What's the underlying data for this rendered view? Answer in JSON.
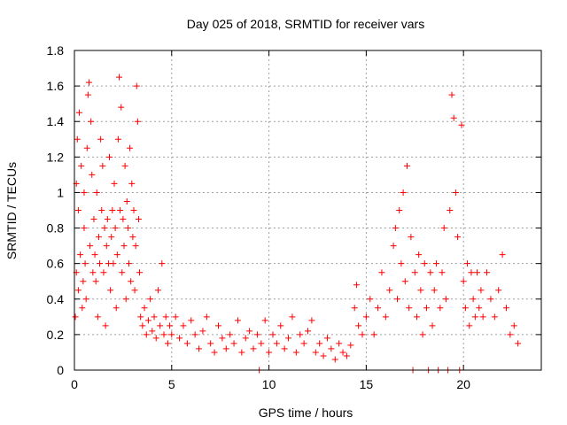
{
  "chart_data": {
    "type": "scatter",
    "title": "Day 025 of 2018, SRMTID for receiver vars",
    "xlabel": "GPS time / hours",
    "ylabel": "SRMTID / TECUs",
    "xlim": [
      0,
      24
    ],
    "ylim": [
      0,
      1.8
    ],
    "x_ticks": [
      0,
      5,
      10,
      15,
      20
    ],
    "x_tick_labels": [
      "0",
      "5",
      "10",
      "15",
      "20"
    ],
    "y_ticks": [
      0,
      0.2,
      0.4,
      0.6,
      0.8,
      1.0,
      1.2,
      1.4,
      1.6,
      1.8
    ],
    "y_tick_labels": [
      "0",
      "0.2",
      "0.4",
      "0.6",
      "0.8",
      "1",
      "1.2",
      "1.4",
      "1.6",
      "1.8"
    ],
    "grid": true,
    "marker": "+",
    "series": [
      {
        "name": "SRMTID",
        "color": "#ff0000",
        "points": [
          [
            0.05,
            0.3
          ],
          [
            0.1,
            0.55
          ],
          [
            0.1,
            1.05
          ],
          [
            0.15,
            1.3
          ],
          [
            0.2,
            0.9
          ],
          [
            0.2,
            0.45
          ],
          [
            0.25,
            1.45
          ],
          [
            0.3,
            0.65
          ],
          [
            0.35,
            1.15
          ],
          [
            0.4,
            0.35
          ],
          [
            0.45,
            0.5
          ],
          [
            0.5,
            1.0
          ],
          [
            0.5,
            0.8
          ],
          [
            0.55,
            0.6
          ],
          [
            0.6,
            0.4
          ],
          [
            0.65,
            1.25
          ],
          [
            0.7,
            1.55
          ],
          [
            0.75,
            1.62
          ],
          [
            0.8,
            0.7
          ],
          [
            0.85,
            1.4
          ],
          [
            0.9,
            1.1
          ],
          [
            0.95,
            0.55
          ],
          [
            1.0,
            0.85
          ],
          [
            1.05,
            0.65
          ],
          [
            1.1,
            0.5
          ],
          [
            1.15,
            1.0
          ],
          [
            1.2,
            0.3
          ],
          [
            1.25,
            0.75
          ],
          [
            1.3,
            0.6
          ],
          [
            1.35,
            1.3
          ],
          [
            1.4,
            0.9
          ],
          [
            1.45,
            1.15
          ],
          [
            1.5,
            0.55
          ],
          [
            1.55,
            0.8
          ],
          [
            1.6,
            0.25
          ],
          [
            1.65,
            0.7
          ],
          [
            1.7,
            0.85
          ],
          [
            1.75,
            0.6
          ],
          [
            1.8,
            1.2
          ],
          [
            1.85,
            0.45
          ],
          [
            1.9,
            0.75
          ],
          [
            1.95,
            0.9
          ],
          [
            2.0,
            0.6
          ],
          [
            2.05,
            1.05
          ],
          [
            2.1,
            0.8
          ],
          [
            2.15,
            0.35
          ],
          [
            2.2,
            0.65
          ],
          [
            2.25,
            1.3
          ],
          [
            2.3,
            1.65
          ],
          [
            2.35,
            0.9
          ],
          [
            2.4,
            1.48
          ],
          [
            2.45,
            0.55
          ],
          [
            2.5,
            0.85
          ],
          [
            2.55,
            0.7
          ],
          [
            2.6,
            1.15
          ],
          [
            2.65,
            0.4
          ],
          [
            2.7,
            0.95
          ],
          [
            2.75,
            0.8
          ],
          [
            2.8,
            0.6
          ],
          [
            2.85,
            1.25
          ],
          [
            2.9,
            0.5
          ],
          [
            2.95,
            1.05
          ],
          [
            3.0,
            0.75
          ],
          [
            3.05,
            0.9
          ],
          [
            3.1,
            0.45
          ],
          [
            3.15,
            0.7
          ],
          [
            3.2,
            1.6
          ],
          [
            3.25,
            1.4
          ],
          [
            3.3,
            0.85
          ],
          [
            3.35,
            0.55
          ],
          [
            3.4,
            0.3
          ],
          [
            3.5,
            0.25
          ],
          [
            3.6,
            0.35
          ],
          [
            3.7,
            0.2
          ],
          [
            3.8,
            0.28
          ],
          [
            3.9,
            0.4
          ],
          [
            4.0,
            0.22
          ],
          [
            4.1,
            0.3
          ],
          [
            4.2,
            0.18
          ],
          [
            4.3,
            0.45
          ],
          [
            4.4,
            0.25
          ],
          [
            4.5,
            0.6
          ],
          [
            4.6,
            0.2
          ],
          [
            4.7,
            0.3
          ],
          [
            4.8,
            0.15
          ],
          [
            4.9,
            0.25
          ],
          [
            5.0,
            0.2
          ],
          [
            5.2,
            0.3
          ],
          [
            5.4,
            0.18
          ],
          [
            5.6,
            0.25
          ],
          [
            5.8,
            0.15
          ],
          [
            6.0,
            0.28
          ],
          [
            6.2,
            0.2
          ],
          [
            6.4,
            0.12
          ],
          [
            6.6,
            0.22
          ],
          [
            6.8,
            0.3
          ],
          [
            7.0,
            0.15
          ],
          [
            7.2,
            0.1
          ],
          [
            7.4,
            0.25
          ],
          [
            7.6,
            0.18
          ],
          [
            7.8,
            0.12
          ],
          [
            8.0,
            0.2
          ],
          [
            8.2,
            0.15
          ],
          [
            8.4,
            0.28
          ],
          [
            8.6,
            0.1
          ],
          [
            8.8,
            0.18
          ],
          [
            9.0,
            0.22
          ],
          [
            9.2,
            0.12
          ],
          [
            9.4,
            0.2
          ],
          [
            9.5,
            0.0
          ],
          [
            9.6,
            0.15
          ],
          [
            9.8,
            0.28
          ],
          [
            10.0,
            0.1
          ],
          [
            10.2,
            0.2
          ],
          [
            10.4,
            0.15
          ],
          [
            10.6,
            0.25
          ],
          [
            10.8,
            0.12
          ],
          [
            11.0,
            0.18
          ],
          [
            11.2,
            0.3
          ],
          [
            11.4,
            0.1
          ],
          [
            11.6,
            0.2
          ],
          [
            11.8,
            0.15
          ],
          [
            12.0,
            0.22
          ],
          [
            12.2,
            0.28
          ],
          [
            12.4,
            0.1
          ],
          [
            12.6,
            0.15
          ],
          [
            12.8,
            0.08
          ],
          [
            13.0,
            0.18
          ],
          [
            13.2,
            0.12
          ],
          [
            13.4,
            0.06
          ],
          [
            13.6,
            0.15
          ],
          [
            13.8,
            0.1
          ],
          [
            14.0,
            0.08
          ],
          [
            14.2,
            0.14
          ],
          [
            14.4,
            0.35
          ],
          [
            14.5,
            0.48
          ],
          [
            14.6,
            0.25
          ],
          [
            14.8,
            0.2
          ],
          [
            15.0,
            0.3
          ],
          [
            15.2,
            0.4
          ],
          [
            15.4,
            0.2
          ],
          [
            15.6,
            0.35
          ],
          [
            15.8,
            0.55
          ],
          [
            16.0,
            0.3
          ],
          [
            16.2,
            0.45
          ],
          [
            16.4,
            0.7
          ],
          [
            16.5,
            0.8
          ],
          [
            16.6,
            0.4
          ],
          [
            16.7,
            0.9
          ],
          [
            16.8,
            0.6
          ],
          [
            16.9,
            1.0
          ],
          [
            17.0,
            0.5
          ],
          [
            17.1,
            1.15
          ],
          [
            17.2,
            0.35
          ],
          [
            17.3,
            0.75
          ],
          [
            17.4,
            0.0
          ],
          [
            17.5,
            0.55
          ],
          [
            17.6,
            0.3
          ],
          [
            17.7,
            0.65
          ],
          [
            17.8,
            0.45
          ],
          [
            17.9,
            0.2
          ],
          [
            18.0,
            0.6
          ],
          [
            18.1,
            0.35
          ],
          [
            18.2,
            0.0
          ],
          [
            18.3,
            0.55
          ],
          [
            18.4,
            0.25
          ],
          [
            18.5,
            0.45
          ],
          [
            18.6,
            0.6
          ],
          [
            18.7,
            0.0
          ],
          [
            18.8,
            0.35
          ],
          [
            18.9,
            0.55
          ],
          [
            19.0,
            0.8
          ],
          [
            19.1,
            0.4
          ],
          [
            19.2,
            0.0
          ],
          [
            19.3,
            0.9
          ],
          [
            19.4,
            1.55
          ],
          [
            19.5,
            1.42
          ],
          [
            19.6,
            1.0
          ],
          [
            19.7,
            0.75
          ],
          [
            19.8,
            0.0
          ],
          [
            19.9,
            1.38
          ],
          [
            20.0,
            0.5
          ],
          [
            20.1,
            0.35
          ],
          [
            20.2,
            0.6
          ],
          [
            20.3,
            0.25
          ],
          [
            20.4,
            0.55
          ],
          [
            20.5,
            0.4
          ],
          [
            20.6,
            0.3
          ],
          [
            20.7,
            0.55
          ],
          [
            20.8,
            0.35
          ],
          [
            20.9,
            0.45
          ],
          [
            21.0,
            0.3
          ],
          [
            21.2,
            0.55
          ],
          [
            21.4,
            0.4
          ],
          [
            21.6,
            0.3
          ],
          [
            21.8,
            0.45
          ],
          [
            22.0,
            0.65
          ],
          [
            22.2,
            0.35
          ],
          [
            22.4,
            0.2
          ],
          [
            22.6,
            0.25
          ],
          [
            22.8,
            0.15
          ]
        ]
      }
    ]
  }
}
